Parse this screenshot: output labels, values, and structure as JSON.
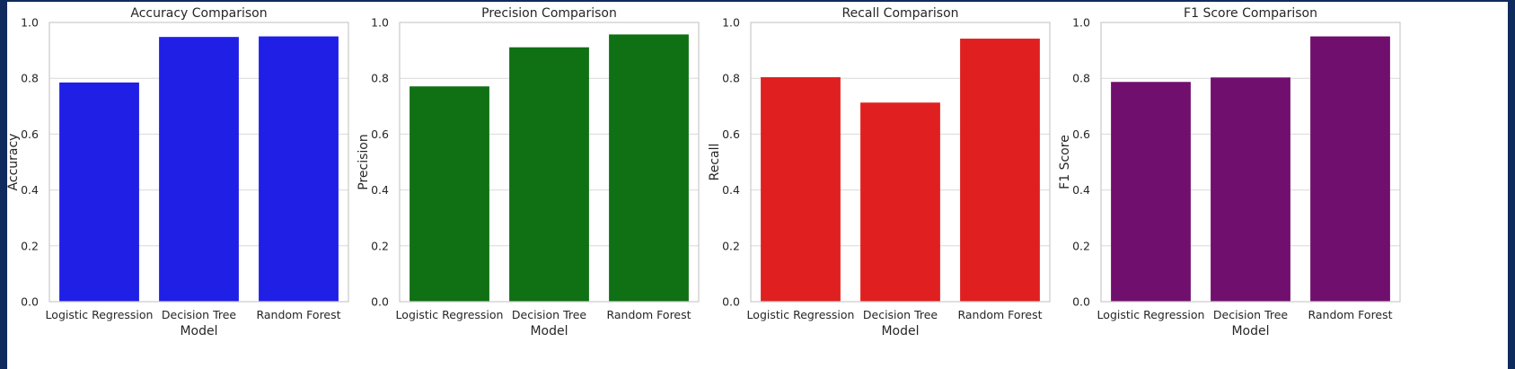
{
  "chart_data": [
    {
      "type": "bar",
      "title": "Accuracy Comparison",
      "xlabel": "Model",
      "ylabel": "Accuracy",
      "categories": [
        "Logistic Regression",
        "Decision Tree",
        "Random Forest"
      ],
      "values": [
        0.785,
        0.948,
        0.95
      ],
      "color": "#1f1fe6",
      "ylim": [
        0,
        1.0
      ],
      "yticks": [
        "0.0",
        "0.2",
        "0.4",
        "0.6",
        "0.8",
        "1.0"
      ],
      "grid": "y"
    },
    {
      "type": "bar",
      "title": "Precision Comparison",
      "xlabel": "Model",
      "ylabel": "Precision",
      "categories": [
        "Logistic Regression",
        "Decision Tree",
        "Random Forest"
      ],
      "values": [
        0.771,
        0.911,
        0.957
      ],
      "color": "#0f7014",
      "ylim": [
        0,
        1.0
      ],
      "yticks": [
        "0.0",
        "0.2",
        "0.4",
        "0.6",
        "0.8",
        "1.0"
      ],
      "grid": "y"
    },
    {
      "type": "bar",
      "title": "Recall Comparison",
      "xlabel": "Model",
      "ylabel": "Recall",
      "categories": [
        "Logistic Regression",
        "Decision Tree",
        "Random Forest"
      ],
      "values": [
        0.804,
        0.713,
        0.942
      ],
      "color": "#e02020",
      "ylim": [
        0,
        1.0
      ],
      "yticks": [
        "0.0",
        "0.2",
        "0.4",
        "0.6",
        "0.8",
        "1.0"
      ],
      "grid": "y"
    },
    {
      "type": "bar",
      "title": "F1 Score Comparison",
      "xlabel": "Model",
      "ylabel": "F1 Score",
      "categories": [
        "Logistic Regression",
        "Decision Tree",
        "Random Forest"
      ],
      "values": [
        0.787,
        0.803,
        0.95
      ],
      "color": "#710f6e",
      "ylim": [
        0,
        1.0
      ],
      "yticks": [
        "0.0",
        "0.2",
        "0.4",
        "0.6",
        "0.8",
        "1.0"
      ],
      "grid": "y"
    }
  ]
}
